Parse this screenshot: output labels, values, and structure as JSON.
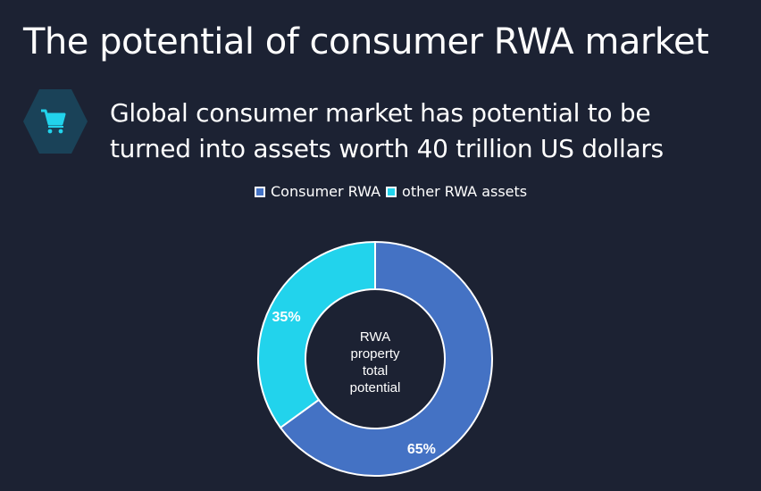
{
  "header": {
    "title": "The potential of consumer RWA market"
  },
  "subtitle": {
    "lines": [
      "Global consumer market has potential to be",
      "turned into assets worth 40 trillion US dollars"
    ],
    "icon": "shopping-cart-icon"
  },
  "colors": {
    "background": "#1c2233",
    "accent": "#22d3ec",
    "icon_bg": "#1a4258"
  },
  "chart_data": {
    "type": "pie",
    "variant": "donut",
    "center_label": "RWA property total potential",
    "legend_position": "top",
    "slices": [
      {
        "name": "Consumer RWA",
        "value": 65,
        "label": "65%",
        "color": "#4472c4"
      },
      {
        "name": "other RWA assets",
        "value": 35,
        "label": "35%",
        "color": "#22d3ec"
      }
    ]
  }
}
